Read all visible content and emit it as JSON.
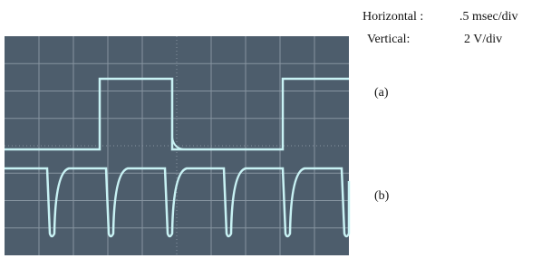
{
  "settings": {
    "horizontal_label": "Horizontal :",
    "horizontal_value": ".5 msec/div",
    "vertical_label": "Vertical:",
    "vertical_value": "2 V/div"
  },
  "traces": {
    "a": "(a)",
    "b": "(b)"
  }
}
